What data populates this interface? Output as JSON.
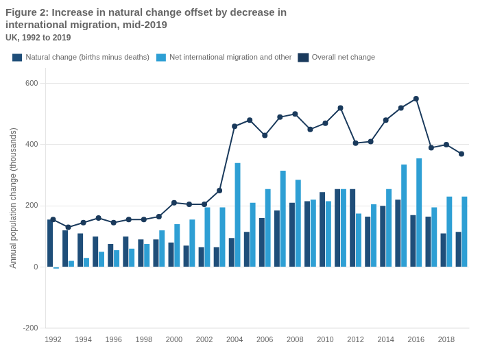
{
  "chart_data": {
    "type": "bar",
    "title": [
      "Figure 2: Increase in natural change offset by decrease in",
      "international migration, mid-2019"
    ],
    "subtitle": "UK, 1992 to 2019",
    "ylabel": "Annual population change (thousands)",
    "categories": [
      "1992",
      null,
      "1994",
      null,
      "1996",
      null,
      "1998",
      null,
      "2000",
      null,
      "2002",
      null,
      "2004",
      null,
      "2006",
      null,
      "2008",
      null,
      "2010",
      null,
      "2012",
      null,
      "2014",
      null,
      "2016",
      null,
      "2018",
      null
    ],
    "series": [
      {
        "name": "Natural change (births minus deaths)",
        "type": "bar",
        "color": "#1f4e79",
        "values": [
          155,
          120,
          110,
          100,
          75,
          100,
          90,
          90,
          80,
          70,
          65,
          65,
          95,
          115,
          160,
          185,
          210,
          215,
          245,
          255,
          255,
          165,
          200,
          220,
          170,
          165,
          110,
          115
        ]
      },
      {
        "name": "Net international migration and other",
        "type": "bar",
        "color": "#2e9fd4",
        "values": [
          -5,
          20,
          30,
          50,
          55,
          60,
          75,
          120,
          140,
          155,
          195,
          195,
          340,
          210,
          255,
          315,
          285,
          220,
          215,
          255,
          175,
          205,
          255,
          335,
          355,
          195,
          230,
          230
        ]
      },
      {
        "name": "Overall net change",
        "type": "line",
        "color": "#1a3a5c",
        "marker": "o",
        "values": [
          155,
          130,
          145,
          160,
          145,
          155,
          155,
          165,
          210,
          205,
          205,
          250,
          460,
          480,
          430,
          490,
          500,
          450,
          470,
          520,
          405,
          410,
          480,
          520,
          550,
          390,
          400,
          370
        ]
      }
    ],
    "ylim": [
      -200,
      650
    ],
    "yticks": [
      -200,
      0,
      200,
      400,
      600
    ],
    "grid": true,
    "legend": "upper left"
  }
}
